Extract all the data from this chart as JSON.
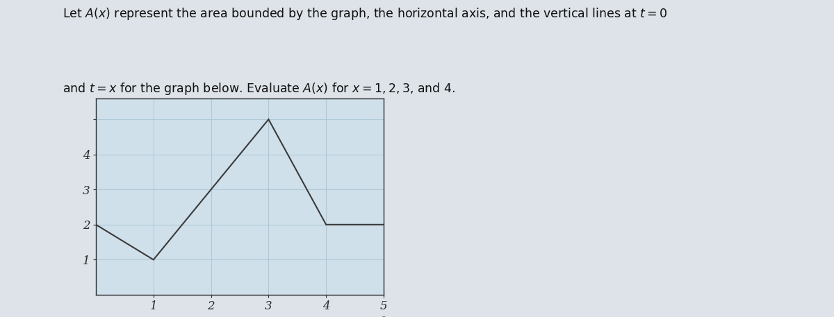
{
  "title_line1": "Let $A(x)$ represent the area bounded by the graph, the horizontal axis, and the vertical lines at $t = 0$",
  "title_line2": "and $t = x$ for the graph below. Evaluate $A(x)$ for $x = 1, 2, 3$, and 4.",
  "title_fontsize": 12.5,
  "graph_x": [
    0,
    1,
    3,
    4,
    5
  ],
  "graph_y": [
    2,
    1,
    5,
    2,
    2
  ],
  "line_color": "#3a3a3a",
  "line_width": 1.5,
  "xlim": [
    0,
    5
  ],
  "ylim": [
    0,
    5.6
  ],
  "xticks": [
    1,
    2,
    3,
    4,
    5
  ],
  "yticks": [
    1,
    2,
    3,
    4,
    5
  ],
  "grid_color": "#adc8d8",
  "grid_linewidth": 0.75,
  "bg_color": "#cfe0eb",
  "fig_bg_color": "#dde3e8",
  "tick_fontsize": 12,
  "five_plus_fontsize": 12
}
